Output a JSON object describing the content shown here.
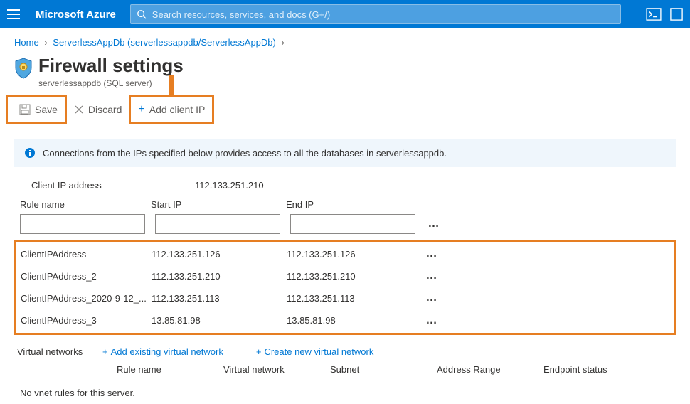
{
  "colors": {
    "brand": "#0078d4",
    "highlight": "#e67e22",
    "info_bg": "#eff6fc"
  },
  "topbar": {
    "brand": "Microsoft Azure",
    "search_placeholder": "Search resources, services, and docs (G+/)"
  },
  "breadcrumb": {
    "home": "Home",
    "item": "ServerlessAppDb (serverlessappdb/ServerlessAppDb)"
  },
  "page": {
    "title": "Firewall settings",
    "subtitle": "serverlessappdb (SQL server)"
  },
  "toolbar": {
    "save": "Save",
    "discard": "Discard",
    "add_client_ip": "Add client IP"
  },
  "info": "Connections from the IPs specified below provides access to all the databases in serverlessappdb.",
  "client_ip": {
    "label": "Client IP address",
    "value": "112.133.251.210"
  },
  "rules": {
    "headers": {
      "name": "Rule name",
      "start": "Start IP",
      "end": "End IP"
    },
    "items": [
      {
        "name": "ClientIPAddress",
        "start": "112.133.251.126",
        "end": "112.133.251.126"
      },
      {
        "name": "ClientIPAddress_2",
        "start": "112.133.251.210",
        "end": "112.133.251.210"
      },
      {
        "name": "ClientIPAddress_2020-9-12_...",
        "start": "112.133.251.113",
        "end": "112.133.251.113"
      },
      {
        "name": "ClientIPAddress_3",
        "start": "13.85.81.98",
        "end": "13.85.81.98"
      }
    ]
  },
  "vnet": {
    "title": "Virtual networks",
    "add_existing": "Add existing virtual network",
    "create_new": "Create new virtual network",
    "cols": {
      "name": "Rule name",
      "network": "Virtual network",
      "subnet": "Subnet",
      "range": "Address Range",
      "status": "Endpoint status"
    },
    "empty": "No vnet rules for this server."
  }
}
